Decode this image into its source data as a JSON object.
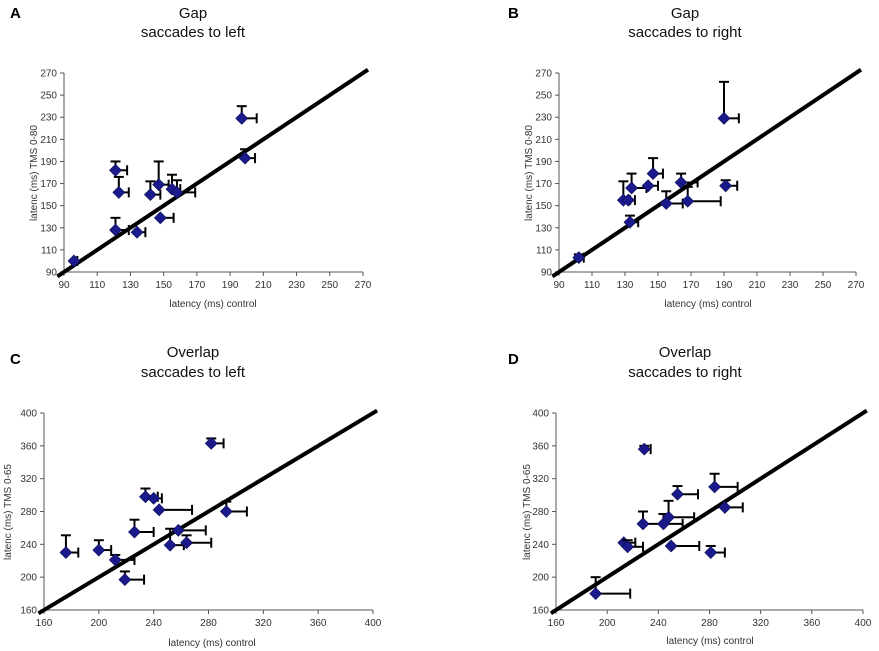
{
  "chart_data": [
    {
      "type": "scatter",
      "panel": "A",
      "title": [
        "Gap",
        "saccades to left"
      ],
      "xlabel": "latency (ms) control",
      "ylabel": "latenc (ms) TMS 0-80",
      "xlim": [
        90,
        270
      ],
      "ylim": [
        90,
        270
      ],
      "xticks": [
        90,
        110,
        130,
        150,
        170,
        190,
        210,
        230,
        250,
        270
      ],
      "yticks": [
        90,
        110,
        130,
        150,
        170,
        190,
        210,
        230,
        250,
        270
      ],
      "reference_line": "identity",
      "points": [
        {
          "x": 96,
          "y": 100,
          "xerr": 2,
          "yerr": 0
        },
        {
          "x": 121,
          "y": 182,
          "xerr": 7,
          "yerr": 8
        },
        {
          "x": 123,
          "y": 162,
          "xerr": 6,
          "yerr": 14
        },
        {
          "x": 121,
          "y": 128,
          "xerr": 8,
          "yerr": 11
        },
        {
          "x": 134,
          "y": 126,
          "xerr": 5,
          "yerr": 0
        },
        {
          "x": 142,
          "y": 160,
          "xerr": 6,
          "yerr": 12
        },
        {
          "x": 147,
          "y": 169,
          "xerr": 6,
          "yerr": 21
        },
        {
          "x": 148,
          "y": 139,
          "xerr": 8,
          "yerr": 0
        },
        {
          "x": 155,
          "y": 165,
          "xerr": 5,
          "yerr": 13
        },
        {
          "x": 158,
          "y": 162,
          "xerr": 11,
          "yerr": 11
        },
        {
          "x": 197,
          "y": 229,
          "xerr": 9,
          "yerr": 11
        },
        {
          "x": 199,
          "y": 193,
          "xerr": 6,
          "yerr": 8
        }
      ]
    },
    {
      "type": "scatter",
      "panel": "B",
      "title": [
        "Gap",
        "saccades to right"
      ],
      "xlabel": "latency (ms) control",
      "ylabel": "latenc (ms) TMS 0-80",
      "xlim": [
        90,
        270
      ],
      "ylim": [
        90,
        270
      ],
      "xticks": [
        90,
        110,
        130,
        150,
        170,
        190,
        210,
        230,
        250,
        270
      ],
      "yticks": [
        90,
        110,
        130,
        150,
        170,
        190,
        210,
        230,
        250,
        270
      ],
      "reference_line": "identity",
      "points": [
        {
          "x": 102,
          "y": 103,
          "xerr": 3,
          "yerr": 3
        },
        {
          "x": 129,
          "y": 155,
          "xerr": 4,
          "yerr": 17
        },
        {
          "x": 132,
          "y": 155,
          "xerr": 4,
          "yerr": 0
        },
        {
          "x": 133,
          "y": 135,
          "xerr": 5,
          "yerr": 6
        },
        {
          "x": 134,
          "y": 166,
          "xerr": 9,
          "yerr": 13
        },
        {
          "x": 144,
          "y": 168,
          "xerr": 6,
          "yerr": 0
        },
        {
          "x": 147,
          "y": 179,
          "xerr": 6,
          "yerr": 14
        },
        {
          "x": 155,
          "y": 152,
          "xerr": 10,
          "yerr": 11
        },
        {
          "x": 164,
          "y": 171,
          "xerr": 10,
          "yerr": 8
        },
        {
          "x": 168,
          "y": 154,
          "xerr": 20,
          "yerr": 13
        },
        {
          "x": 190,
          "y": 229,
          "xerr": 9,
          "yerr": 33
        },
        {
          "x": 191,
          "y": 168,
          "xerr": 7,
          "yerr": 5
        }
      ]
    },
    {
      "type": "scatter",
      "panel": "C",
      "title": [
        "Overlap",
        "saccades to left"
      ],
      "xlabel": "latency (ms)  control",
      "ylabel": "latenc (ms) TMS 0-65",
      "xlim": [
        160,
        400
      ],
      "ylim": [
        160,
        400
      ],
      "xticks": [
        160,
        200,
        240,
        280,
        320,
        360,
        400
      ],
      "yticks": [
        160,
        200,
        240,
        280,
        320,
        360,
        400
      ],
      "reference_line": "identity",
      "points": [
        {
          "x": 176,
          "y": 230,
          "xerr": 9,
          "yerr": 21
        },
        {
          "x": 200,
          "y": 233,
          "xerr": 9,
          "yerr": 12
        },
        {
          "x": 212,
          "y": 221,
          "xerr": 14,
          "yerr": 6
        },
        {
          "x": 219,
          "y": 197,
          "xerr": 14,
          "yerr": 10
        },
        {
          "x": 226,
          "y": 255,
          "xerr": 14,
          "yerr": 15
        },
        {
          "x": 234,
          "y": 298,
          "xerr": 9,
          "yerr": 10
        },
        {
          "x": 240,
          "y": 296,
          "xerr": 6,
          "yerr": 0
        },
        {
          "x": 244,
          "y": 282,
          "xerr": 24,
          "yerr": 0
        },
        {
          "x": 252,
          "y": 239,
          "xerr": 10,
          "yerr": 20
        },
        {
          "x": 258,
          "y": 257,
          "xerr": 20,
          "yerr": 0
        },
        {
          "x": 264,
          "y": 242,
          "xerr": 18,
          "yerr": 9
        },
        {
          "x": 282,
          "y": 363,
          "xerr": 9,
          "yerr": 6
        },
        {
          "x": 293,
          "y": 280,
          "xerr": 15,
          "yerr": 12
        }
      ]
    },
    {
      "type": "scatter",
      "panel": "D",
      "title": [
        "Overlap",
        "saccades to right"
      ],
      "xlabel": "latency (ms)  control",
      "ylabel": "latenc (ms) TMS 0-65",
      "xlim": [
        160,
        400
      ],
      "ylim": [
        160,
        400
      ],
      "xticks": [
        160,
        200,
        240,
        280,
        320,
        360,
        400
      ],
      "yticks": [
        160,
        200,
        240,
        280,
        320,
        360,
        400
      ],
      "reference_line": "identity",
      "points": [
        {
          "x": 191,
          "y": 180,
          "xerr": 27,
          "yerr": 20
        },
        {
          "x": 213,
          "y": 242,
          "xerr": 9,
          "yerr": 0
        },
        {
          "x": 216,
          "y": 237,
          "xerr": 12,
          "yerr": 8
        },
        {
          "x": 228,
          "y": 265,
          "xerr": 16,
          "yerr": 15
        },
        {
          "x": 229,
          "y": 356,
          "xerr": 5,
          "yerr": 4
        },
        {
          "x": 244,
          "y": 265,
          "xerr": 15,
          "yerr": 12
        },
        {
          "x": 248,
          "y": 273,
          "xerr": 20,
          "yerr": 20
        },
        {
          "x": 250,
          "y": 238,
          "xerr": 22,
          "yerr": 0
        },
        {
          "x": 255,
          "y": 301,
          "xerr": 16,
          "yerr": 10
        },
        {
          "x": 281,
          "y": 230,
          "xerr": 11,
          "yerr": 8
        },
        {
          "x": 284,
          "y": 310,
          "xerr": 18,
          "yerr": 16
        },
        {
          "x": 292,
          "y": 285,
          "xerr": 14,
          "yerr": 0
        }
      ]
    }
  ]
}
